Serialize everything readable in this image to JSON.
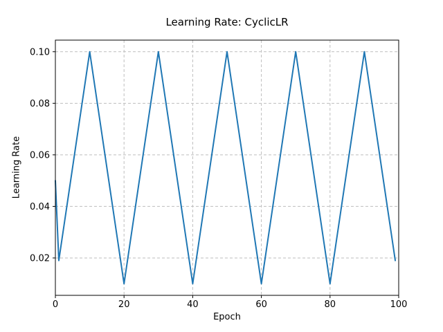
{
  "chart_data": {
    "type": "line",
    "title": "Learning Rate: CyclicLR",
    "xlabel": "Epoch",
    "ylabel": "Learning Rate",
    "x_start": 0,
    "x_step": 1,
    "values": [
      0.05,
      0.019,
      0.028,
      0.037,
      0.046,
      0.055,
      0.064,
      0.073,
      0.082,
      0.091,
      0.1,
      0.091,
      0.082,
      0.073,
      0.064,
      0.055,
      0.046,
      0.037,
      0.028,
      0.019,
      0.01,
      0.019,
      0.028,
      0.037,
      0.046,
      0.055,
      0.064,
      0.073,
      0.082,
      0.091,
      0.1,
      0.091,
      0.082,
      0.073,
      0.064,
      0.055,
      0.046,
      0.037,
      0.028,
      0.019,
      0.01,
      0.019,
      0.028,
      0.037,
      0.046,
      0.055,
      0.064,
      0.073,
      0.082,
      0.091,
      0.1,
      0.091,
      0.082,
      0.073,
      0.064,
      0.055,
      0.046,
      0.037,
      0.028,
      0.019,
      0.01,
      0.019,
      0.028,
      0.037,
      0.046,
      0.055,
      0.064,
      0.073,
      0.082,
      0.091,
      0.1,
      0.091,
      0.082,
      0.073,
      0.064,
      0.055,
      0.046,
      0.037,
      0.028,
      0.019,
      0.01,
      0.019,
      0.028,
      0.037,
      0.046,
      0.055,
      0.064,
      0.073,
      0.082,
      0.091,
      0.1,
      0.091,
      0.082,
      0.073,
      0.064,
      0.055,
      0.046,
      0.037,
      0.028,
      0.019
    ],
    "xlim": [
      0,
      100
    ],
    "ylim": [
      0.0055,
      0.1045
    ],
    "xticks": [
      0,
      20,
      40,
      60,
      80,
      100
    ],
    "xtick_labels": [
      "0",
      "20",
      "40",
      "60",
      "80",
      "100"
    ],
    "yticks": [
      0.02,
      0.04,
      0.06,
      0.08,
      0.1
    ],
    "ytick_labels": [
      "0.02",
      "0.04",
      "0.06",
      "0.08",
      "0.10"
    ],
    "grid": true,
    "grid_style": "dashed",
    "legend_position": "none",
    "colors": {
      "line": "#1f77b4",
      "grid": "#bdbdbd",
      "spine": "#000000",
      "text": "#000000",
      "background": "#ffffff"
    }
  }
}
